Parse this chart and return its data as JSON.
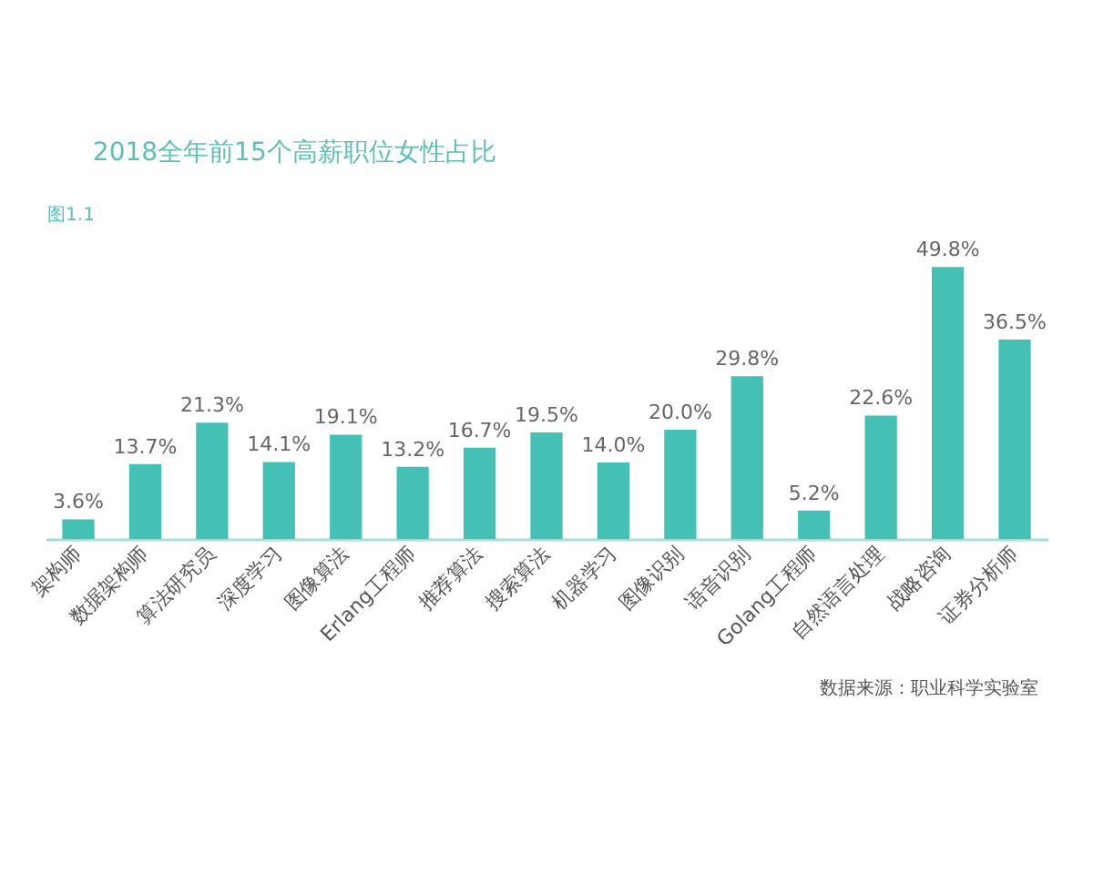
{
  "chart_data": {
    "type": "bar",
    "title": "2018全年前15个高薪职位女性占比",
    "categories": [
      "架构师",
      "数据架构师",
      "算法研究员",
      "深度学习",
      "图像算法",
      "Erlang工程师",
      "推荐算法",
      "搜索算法",
      "机器学习",
      "图像识别",
      "语音识别",
      "Golang工程师",
      "自然语言处理",
      "战略咨询",
      "证券分析师"
    ],
    "values": [
      3.6,
      13.7,
      21.3,
      14.1,
      19.1,
      13.2,
      16.7,
      19.5,
      14.0,
      20.0,
      29.8,
      5.2,
      22.6,
      49.8,
      36.5
    ],
    "value_labels": [
      "3.6%",
      "13.7%",
      "21.3%",
      "14.1%",
      "19.1%",
      "13.2%",
      "16.7%",
      "19.5%",
      "14.0%",
      "20.0%",
      "29.8%",
      "5.2%",
      "22.6%",
      "49.8%",
      "36.5%"
    ],
    "color": "#45c0b4",
    "annotations": [
      "图1.1",
      "数据来源：职业科学实验室"
    ]
  }
}
